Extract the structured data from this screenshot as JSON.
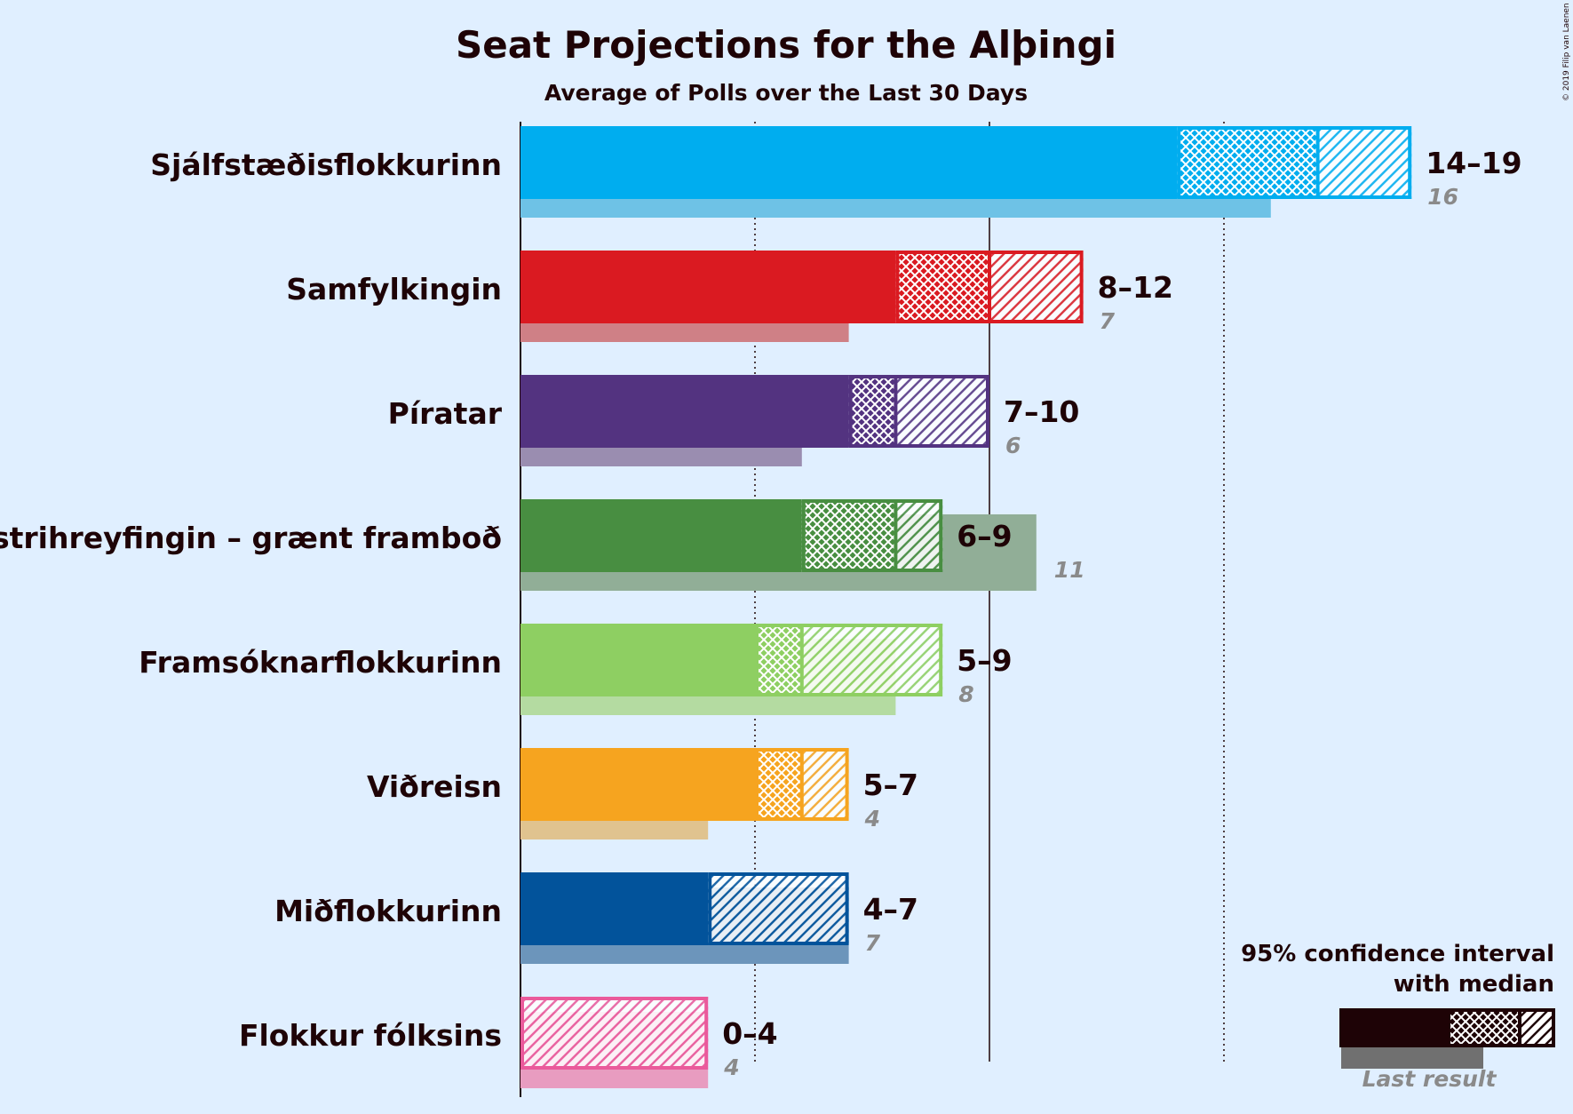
{
  "chart_data": {
    "type": "bar",
    "title": "Seat Projections for the Alþingi",
    "subtitle": "Average of Polls over the Last 30 Days",
    "copyright": "© 2019 Filip van Laenen",
    "gridlines": [
      5,
      10,
      15
    ],
    "gridline_style": {
      "5": "dotted",
      "10": "solid",
      "15": "dotted"
    },
    "series": [
      {
        "name": "Sjálfstæðisflokkurinn",
        "color": "#00adef",
        "last_color": "#6ec2e6",
        "low": 14,
        "median": 17,
        "high": 19,
        "range_label": "14–19",
        "last": 16,
        "last_label": "16"
      },
      {
        "name": "Samfylkingin",
        "color": "#da1a21",
        "last_color": "#cf8086",
        "low": 8,
        "median": 10,
        "high": 12,
        "range_label": "8–12",
        "last": 7,
        "last_label": "7"
      },
      {
        "name": "Píratar",
        "color": "#533380",
        "last_color": "#9a8db0",
        "low": 7,
        "median": 8,
        "high": 10,
        "range_label": "7–10",
        "last": 6,
        "last_label": "6"
      },
      {
        "name": "Vinstrihreyfingin – grænt framboð",
        "color": "#488e41",
        "last_color": "#91ae97",
        "low": 6,
        "median": 8,
        "high": 9,
        "range_label": "6–9",
        "last": 11,
        "last_label": "11"
      },
      {
        "name": "Framsóknarflokkurinn",
        "color": "#8ecf62",
        "last_color": "#b4dba1",
        "low": 5,
        "median": 6,
        "high": 9,
        "range_label": "5–9",
        "last": 8,
        "last_label": "8"
      },
      {
        "name": "Viðreisn",
        "color": "#f6a41f",
        "last_color": "#e0c38f",
        "low": 5,
        "median": 6,
        "high": 7,
        "range_label": "5–7",
        "last": 4,
        "last_label": "4"
      },
      {
        "name": "Miðflokkurinn",
        "color": "#02539b",
        "last_color": "#6c95bb",
        "low": 4,
        "median": 4,
        "high": 7,
        "range_label": "4–7",
        "last": 7,
        "last_label": "7"
      },
      {
        "name": "Flokkur fólksins",
        "color": "#ea5a9b",
        "last_color": "#e89cc0",
        "low": 0,
        "median": 0,
        "high": 4,
        "range_label": "0–4",
        "last": 4,
        "last_label": "4"
      }
    ],
    "legend": {
      "line1": "95% confidence interval",
      "line2": "with median",
      "last_result": "Last result",
      "placement": "bottom-right"
    }
  }
}
